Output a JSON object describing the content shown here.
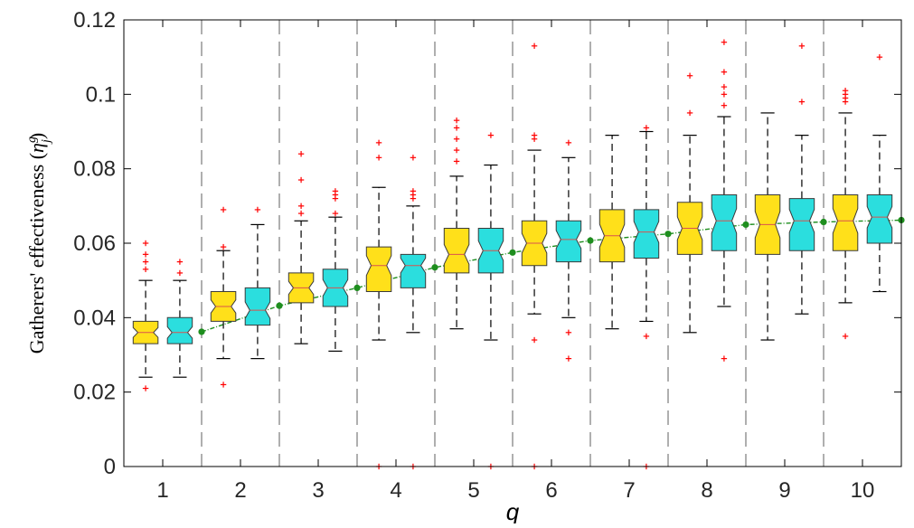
{
  "chart_data": {
    "type": "box",
    "title": "",
    "ylabel": "Gatherers' effectiveness (",
    "ylabel_symbol": "η",
    "ylabel_sup": "g",
    "ylabel_sub": "j",
    "ylabel_close": ")",
    "xlabel": "q",
    "ylim": [
      0,
      0.12
    ],
    "yticks": [
      "0",
      "0.02",
      "0.04",
      "0.06",
      "0.08",
      "0.1",
      "0.12"
    ],
    "categories": [
      "1",
      "2",
      "3",
      "4",
      "5",
      "6",
      "7",
      "8",
      "9",
      "10"
    ],
    "grid": "vertical dashed separators between groups",
    "colors": {
      "series_a": "#FFE01A",
      "series_b": "#2BDEDE",
      "trend": "#1E8E1E",
      "outlier": "#FF0000",
      "whisker": "#000000"
    },
    "series": [
      {
        "boxes": [
          {
            "wlo": 0.024,
            "q1": 0.033,
            "med": 0.036,
            "q3": 0.039,
            "whi": 0.05,
            "outliers": [
              0.021,
              0.053,
              0.055,
              0.057,
              0.06
            ]
          },
          {
            "wlo": 0.029,
            "q1": 0.039,
            "med": 0.043,
            "q3": 0.047,
            "whi": 0.058,
            "outliers": [
              0.022,
              0.059,
              0.069
            ]
          },
          {
            "wlo": 0.033,
            "q1": 0.044,
            "med": 0.048,
            "q3": 0.052,
            "whi": 0.066,
            "outliers": [
              0.068,
              0.07,
              0.077,
              0.084
            ]
          },
          {
            "wlo": 0.034,
            "q1": 0.047,
            "med": 0.054,
            "q3": 0.059,
            "whi": 0.075,
            "outliers": [
              0.0,
              0.083,
              0.087
            ]
          },
          {
            "wlo": 0.037,
            "q1": 0.052,
            "med": 0.057,
            "q3": 0.064,
            "whi": 0.078,
            "outliers": [
              0.082,
              0.085,
              0.088,
              0.091,
              0.093
            ]
          },
          {
            "wlo": 0.041,
            "q1": 0.054,
            "med": 0.06,
            "q3": 0.066,
            "whi": 0.085,
            "outliers": [
              0.0,
              0.034,
              0.088,
              0.089,
              0.113
            ]
          },
          {
            "wlo": 0.037,
            "q1": 0.055,
            "med": 0.062,
            "q3": 0.069,
            "whi": 0.089,
            "outliers": []
          },
          {
            "wlo": 0.036,
            "q1": 0.057,
            "med": 0.064,
            "q3": 0.071,
            "whi": 0.089,
            "outliers": [
              0.095,
              0.105
            ]
          },
          {
            "wlo": 0.034,
            "q1": 0.057,
            "med": 0.065,
            "q3": 0.073,
            "whi": 0.095,
            "outliers": []
          },
          {
            "wlo": 0.044,
            "q1": 0.058,
            "med": 0.066,
            "q3": 0.073,
            "whi": 0.095,
            "outliers": [
              0.035,
              0.098,
              0.099,
              0.1,
              0.101
            ]
          }
        ]
      },
      {
        "boxes": [
          {
            "wlo": 0.024,
            "q1": 0.033,
            "med": 0.036,
            "q3": 0.04,
            "whi": 0.05,
            "outliers": [
              0.052,
              0.055
            ]
          },
          {
            "wlo": 0.029,
            "q1": 0.038,
            "med": 0.042,
            "q3": 0.048,
            "whi": 0.065,
            "outliers": [
              0.069
            ]
          },
          {
            "wlo": 0.031,
            "q1": 0.043,
            "med": 0.048,
            "q3": 0.053,
            "whi": 0.067,
            "outliers": [
              0.068,
              0.072,
              0.073,
              0.074
            ]
          },
          {
            "wlo": 0.036,
            "q1": 0.048,
            "med": 0.054,
            "q3": 0.057,
            "whi": 0.07,
            "outliers": [
              0.0,
              0.072,
              0.073,
              0.074,
              0.083
            ]
          },
          {
            "wlo": 0.034,
            "q1": 0.052,
            "med": 0.058,
            "q3": 0.064,
            "whi": 0.081,
            "outliers": [
              0.0,
              0.089
            ]
          },
          {
            "wlo": 0.04,
            "q1": 0.055,
            "med": 0.061,
            "q3": 0.066,
            "whi": 0.083,
            "outliers": [
              0.029,
              0.036,
              0.087
            ]
          },
          {
            "wlo": 0.039,
            "q1": 0.056,
            "med": 0.063,
            "q3": 0.069,
            "whi": 0.09,
            "outliers": [
              0.0,
              0.035,
              0.091
            ]
          },
          {
            "wlo": 0.043,
            "q1": 0.058,
            "med": 0.066,
            "q3": 0.073,
            "whi": 0.094,
            "outliers": [
              0.029,
              0.097,
              0.1,
              0.102,
              0.106,
              0.114
            ]
          },
          {
            "wlo": 0.041,
            "q1": 0.058,
            "med": 0.066,
            "q3": 0.072,
            "whi": 0.089,
            "outliers": [
              0.098,
              0.113
            ]
          },
          {
            "wlo": 0.047,
            "q1": 0.06,
            "med": 0.067,
            "q3": 0.073,
            "whi": 0.089,
            "outliers": [
              0.11
            ]
          }
        ]
      }
    ],
    "trend": [
      {
        "x": 1.5,
        "y": 0.0362
      },
      {
        "x": 2.5,
        "y": 0.0432
      },
      {
        "x": 3.5,
        "y": 0.048
      },
      {
        "x": 4.5,
        "y": 0.0535
      },
      {
        "x": 5.5,
        "y": 0.0575
      },
      {
        "x": 6.5,
        "y": 0.0607
      },
      {
        "x": 7.5,
        "y": 0.0625
      },
      {
        "x": 8.5,
        "y": 0.065
      },
      {
        "x": 9.5,
        "y": 0.0657
      },
      {
        "x": 10.5,
        "y": 0.0662
      }
    ]
  }
}
